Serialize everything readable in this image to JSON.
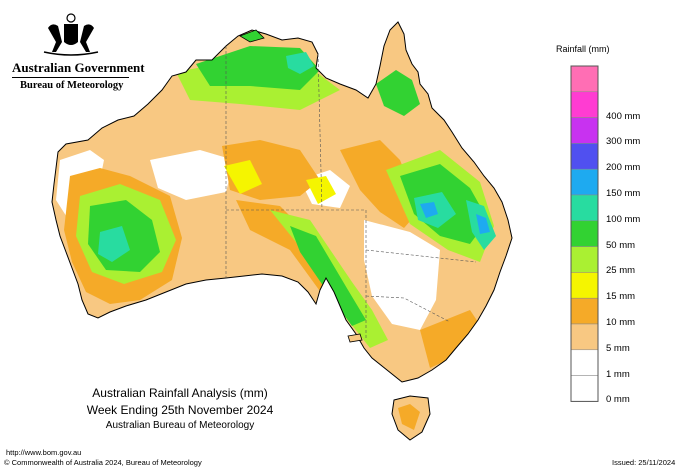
{
  "header": {
    "government": "Australian Government",
    "bureau": "Bureau of Meteorology"
  },
  "legend": {
    "title": "Rainfall (mm)",
    "classes": [
      {
        "label": "",
        "color": "#ff6eb4"
      },
      {
        "label": "400 mm",
        "color": "#ff3cd2"
      },
      {
        "label": "300 mm",
        "color": "#c832f0"
      },
      {
        "label": "200 mm",
        "color": "#5050f0"
      },
      {
        "label": "150 mm",
        "color": "#1eaaf0"
      },
      {
        "label": "100 mm",
        "color": "#28dca0"
      },
      {
        "label": "50 mm",
        "color": "#32d232"
      },
      {
        "label": "25 mm",
        "color": "#aaf032"
      },
      {
        "label": "15 mm",
        "color": "#f5f500"
      },
      {
        "label": "10 mm",
        "color": "#f5aa28"
      },
      {
        "label": "5 mm",
        "color": "#f8c882"
      },
      {
        "label": "1 mm",
        "color": "#ffffff"
      },
      {
        "label": "0 mm",
        "color": "#ffffff"
      }
    ]
  },
  "map": {
    "title_line1": "Australian Rainfall Analysis (mm)",
    "title_line2": "Week Ending 25th November 2024",
    "title_line3": "Australian Bureau of Meteorology"
  },
  "footer": {
    "url": "http://www.bom.gov.au",
    "copyright": "© Commonwealth of Australia 2024, Bureau of Meteorology",
    "issued": "Issued: 25/11/2024"
  }
}
